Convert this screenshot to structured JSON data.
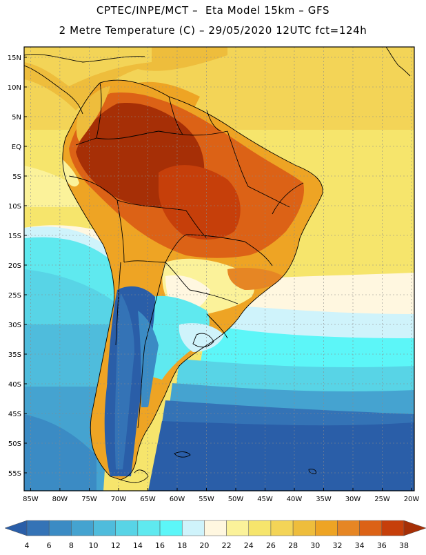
{
  "header": {
    "title_line1": "CPTEC/INPE/MCT –  Eta Model 15km – GFS",
    "title_line2": "2 Metre Temperature (C) – 29/05/2020 12UTC fct=124h"
  },
  "map": {
    "lat_labels": [
      "15N",
      "10N",
      "5N",
      "EQ",
      "5S",
      "10S",
      "15S",
      "20S",
      "25S",
      "30S",
      "35S",
      "40S",
      "45S",
      "50S",
      "55S"
    ],
    "lon_labels": [
      "85W",
      "80W",
      "75W",
      "70W",
      "65W",
      "60W",
      "55W",
      "50W",
      "45W",
      "40W",
      "35W",
      "30W",
      "25W",
      "20W"
    ]
  },
  "legend": {
    "ticks": [
      "4",
      "6",
      "8",
      "10",
      "12",
      "14",
      "16",
      "18",
      "20",
      "22",
      "24",
      "26",
      "28",
      "30",
      "32",
      "34",
      "36",
      "38"
    ],
    "colors": [
      "#2a5ea8",
      "#3473b6",
      "#3b8bc4",
      "#45a3d0",
      "#4fbcdc",
      "#58d4e6",
      "#5fe9ef",
      "#5cf6f8",
      "#cff3fb",
      "#fff7e0",
      "#fbf29a",
      "#f6e56c",
      "#f3d457",
      "#eebd3c",
      "#eea424",
      "#e68624",
      "#dc6216",
      "#c63f0a",
      "#a62f06"
    ]
  }
}
